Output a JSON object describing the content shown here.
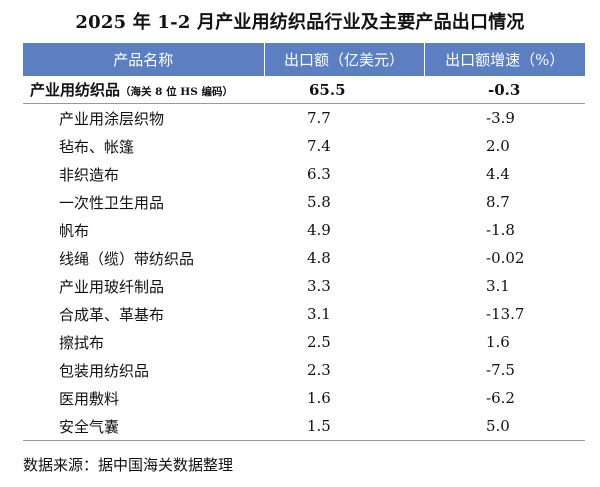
{
  "title": "2025 年 1-2 月产业用纺织品行业及主要产品出口情况",
  "headers": {
    "product": "产品名称",
    "export_value": "出口额（亿美元）",
    "growth": "出口额增速（%）"
  },
  "total": {
    "name": "产业用纺织品",
    "note": "（海关 8 位 HS 编码）",
    "value": "65.5",
    "growth": "-0.3"
  },
  "rows": [
    {
      "name": "产业用涂层织物",
      "value": "7.7",
      "growth": "-3.9"
    },
    {
      "name": "毡布、帐篷",
      "value": "7.4",
      "growth": "2.0"
    },
    {
      "name": "非织造布",
      "value": "6.3",
      "growth": "4.4"
    },
    {
      "name": "一次性卫生用品",
      "value": "5.8",
      "growth": "8.7"
    },
    {
      "name": "帆布",
      "value": "4.9",
      "growth": "-1.8"
    },
    {
      "name": "线绳（缆）带纺织品",
      "value": "4.8",
      "growth": "-0.02"
    },
    {
      "name": "产业用玻纤制品",
      "value": "3.3",
      "growth": "3.1"
    },
    {
      "name": "合成革、革基布",
      "value": "3.1",
      "growth": "-13.7"
    },
    {
      "name": "擦拭布",
      "value": "2.5",
      "growth": "1.6"
    },
    {
      "name": "包装用纺织品",
      "value": "2.3",
      "growth": "-7.5"
    },
    {
      "name": "医用敷料",
      "value": "1.6",
      "growth": "-6.2"
    },
    {
      "name": "安全气囊",
      "value": "1.5",
      "growth": "5.0"
    }
  ],
  "source": "数据来源：据中国海关数据整理"
}
